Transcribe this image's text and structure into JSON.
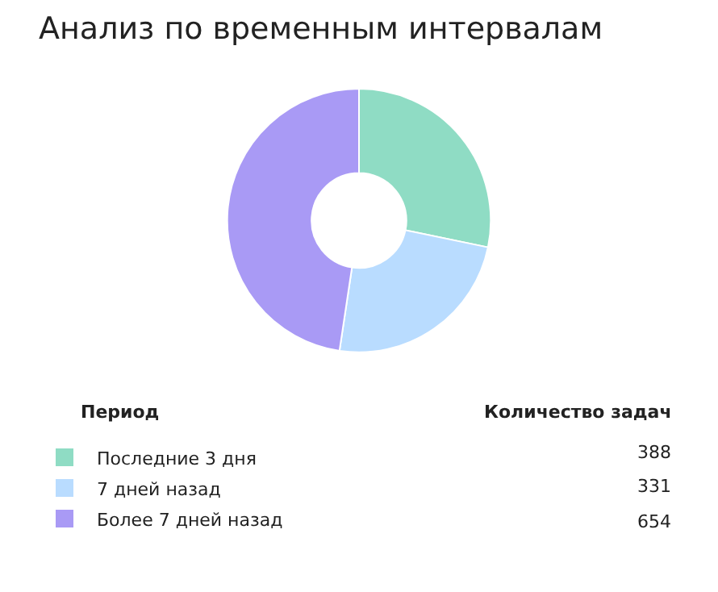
{
  "chart_data": {
    "type": "donut",
    "title": "Анализ по временным интервалам",
    "categories": [
      "Последние 3 дня",
      "7 дней назад",
      "Более 7 дней назад"
    ],
    "values": [
      388,
      331,
      654
    ],
    "colors": [
      "#8fdcc4",
      "#b9dcff",
      "#a99af5"
    ],
    "annotations": [
      "Период",
      "Количество задач"
    ],
    "data_labels": true,
    "legend": "bottom"
  }
}
